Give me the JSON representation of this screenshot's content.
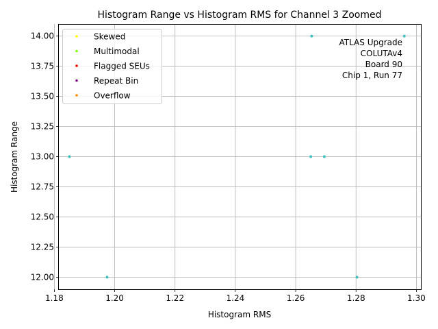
{
  "chart_data": {
    "type": "scatter",
    "title": "Histogram Range vs Histogram RMS for Channel 3 Zoomed",
    "xlabel": "Histogram RMS",
    "ylabel": "Histogram Range",
    "xlim": [
      1.1815,
      1.3015
    ],
    "ylim": [
      11.9,
      14.1
    ],
    "x_ticks": [
      1.18,
      1.2,
      1.22,
      1.24,
      1.26,
      1.28,
      1.3
    ],
    "x_tick_labels": [
      "1.18",
      "1.20",
      "1.22",
      "1.24",
      "1.26",
      "1.28",
      "1.30"
    ],
    "y_ticks": [
      12.0,
      12.25,
      12.5,
      12.75,
      13.0,
      13.25,
      13.5,
      13.75,
      14.0
    ],
    "y_tick_labels": [
      "12.00",
      "12.25",
      "12.50",
      "12.75",
      "13.00",
      "13.25",
      "13.50",
      "13.75",
      "14.00"
    ],
    "grid": true,
    "legend_position": "top-left",
    "legend": [
      {
        "label": "Skewed",
        "color": "#ffff00"
      },
      {
        "label": "Multimodal",
        "color": "#7fff00"
      },
      {
        "label": "Flagged SEUs",
        "color": "#ff0000"
      },
      {
        "label": "Repeat Bin",
        "color": "#800080"
      },
      {
        "label": "Overflow",
        "color": "#ff8c00"
      }
    ],
    "annotation": [
      "ATLAS Upgrade",
      "COLUTAv4",
      "Board 90",
      "Chip 1, Run 77"
    ],
    "series": [
      {
        "color": "#40bfbf",
        "points": [
          {
            "x": 1.185,
            "y": 13.0
          },
          {
            "x": 1.1975,
            "y": 12.0
          },
          {
            "x": 1.265,
            "y": 13.0
          },
          {
            "x": 1.2653,
            "y": 14.0
          },
          {
            "x": 1.2695,
            "y": 13.0
          },
          {
            "x": 1.2803,
            "y": 12.0
          },
          {
            "x": 1.296,
            "y": 14.0
          }
        ]
      }
    ]
  }
}
